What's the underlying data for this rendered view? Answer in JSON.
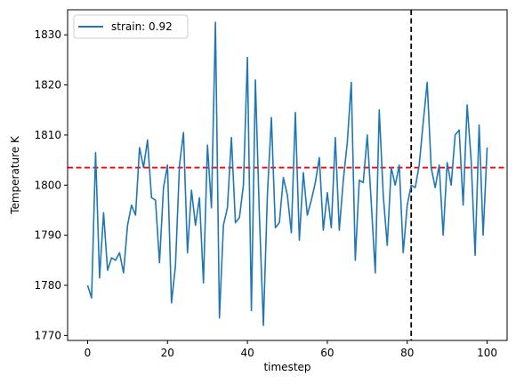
{
  "chart_data": {
    "type": "line",
    "title": "",
    "xlabel": "timestep",
    "ylabel": "Temperature K",
    "xlim": [
      -5,
      105
    ],
    "ylim": [
      1769,
      1835
    ],
    "xticks": [
      0,
      20,
      40,
      60,
      80,
      100
    ],
    "yticks": [
      1770,
      1780,
      1790,
      1800,
      1810,
      1820,
      1830
    ],
    "grid": false,
    "legend_position": "top-left",
    "series": [
      {
        "name": "strain: 0.92",
        "color": "#1f77b4",
        "x": [
          0,
          1,
          2,
          3,
          4,
          5,
          6,
          7,
          8,
          9,
          10,
          11,
          12,
          13,
          14,
          15,
          16,
          17,
          18,
          19,
          20,
          21,
          22,
          23,
          24,
          25,
          26,
          27,
          28,
          29,
          30,
          31,
          32,
          33,
          34,
          35,
          36,
          37,
          38,
          39,
          40,
          41,
          42,
          43,
          44,
          45,
          46,
          47,
          48,
          49,
          50,
          51,
          52,
          53,
          54,
          55,
          56,
          57,
          58,
          59,
          60,
          61,
          62,
          63,
          64,
          65,
          66,
          67,
          68,
          69,
          70,
          71,
          72,
          73,
          74,
          75,
          76,
          77,
          78,
          79,
          80,
          81,
          82,
          83,
          84,
          85,
          86,
          87,
          88,
          89,
          90,
          91,
          92,
          93,
          94,
          95,
          96,
          97,
          98,
          99,
          100
        ],
        "values": [
          1780,
          1777.5,
          1806.5,
          1781.5,
          1794.5,
          1783,
          1785.5,
          1785,
          1786.5,
          1782.5,
          1792,
          1796,
          1794,
          1807.5,
          1803.5,
          1809,
          1797.5,
          1797,
          1784.5,
          1799.5,
          1804,
          1776.5,
          1784,
          1804,
          1810.5,
          1786.5,
          1799,
          1792,
          1797.5,
          1780.5,
          1808,
          1795.5,
          1832.5,
          1773.5,
          1792,
          1795.5,
          1809.5,
          1792.5,
          1793.5,
          1800,
          1825.5,
          1775,
          1821,
          1794,
          1772,
          1798,
          1813.5,
          1791.5,
          1792.5,
          1801.5,
          1798,
          1790.5,
          1814.5,
          1789,
          1802.5,
          1794,
          1797,
          1800.5,
          1805.5,
          1791,
          1798.5,
          1791.5,
          1809.5,
          1791,
          1801,
          1808.5,
          1820.5,
          1785,
          1801,
          1800.5,
          1810,
          1796.5,
          1782.5,
          1815,
          1798,
          1788,
          1803.5,
          1800,
          1804,
          1786.5,
          1796,
          1800,
          1799.5,
          1804,
          1812.5,
          1820.5,
          1803.5,
          1799.5,
          1804,
          1790,
          1804.5,
          1800,
          1810,
          1811,
          1796,
          1816,
          1805,
          1786,
          1812,
          1790,
          1807.5
        ]
      }
    ],
    "reference_lines": [
      {
        "orientation": "horizontal",
        "value": 1803.5,
        "color": "#ff0000",
        "style": "dashed"
      },
      {
        "orientation": "vertical",
        "value": 81,
        "color": "#000000",
        "style": "dashed"
      }
    ]
  }
}
